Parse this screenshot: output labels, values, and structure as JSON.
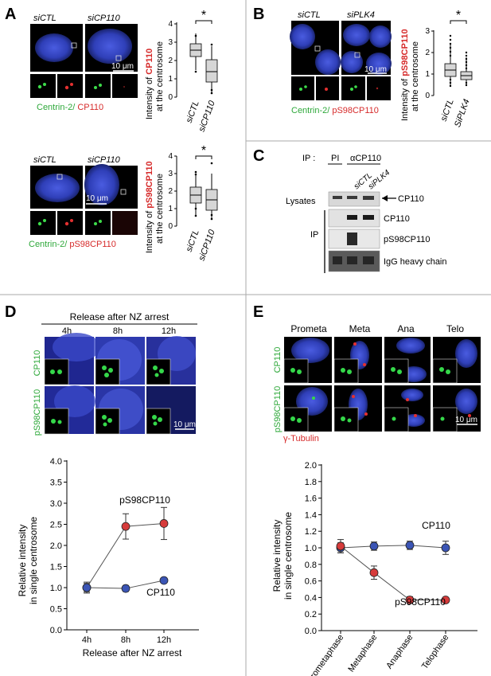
{
  "panels": {
    "A": {
      "letter": "A",
      "top": {
        "cond1": "siCTL",
        "cond2": "siCP110",
        "scalebar": "10 μm",
        "caption_green": "Centrin-2/",
        "caption_red": " CP110",
        "ylabel_pre": "Intensity of ",
        "ylabel_red": "CP110",
        "ylabel_line2": "at the centrosome",
        "sig": "*",
        "xticks": [
          "siCTL",
          "siCP110"
        ],
        "yticks": [
          "0",
          "1",
          "2",
          "3",
          "4"
        ]
      },
      "bottom": {
        "cond1": "siCTL",
        "cond2": "siCP110",
        "scalebar": "10 μm",
        "caption_green": "Centrin-2/",
        "caption_red": " pS98CP110",
        "ylabel_pre": "Intensity of ",
        "ylabel_red": "pS98CP110",
        "ylabel_line2": "at the centrosome",
        "sig": "*",
        "xticks": [
          "siCTL",
          "siCP110"
        ],
        "yticks": [
          "0",
          "1",
          "2",
          "3",
          "4"
        ]
      }
    },
    "B": {
      "letter": "B",
      "cond1": "siCTL",
      "cond2": "siPLK4",
      "scalebar": "10 μm",
      "caption_green": "Centrin-2/",
      "caption_red": " pS98CP110",
      "ylabel_pre": "Intensity of ",
      "ylabel_red": "pS98CP110",
      "ylabel_line2": "at the centrosome",
      "sig": "*",
      "xticks": [
        "siCTL",
        "SiPLK4"
      ],
      "yticks": [
        "0",
        "1",
        "2",
        "3"
      ]
    },
    "C": {
      "letter": "C",
      "ip_label": "IP :",
      "pi": "PI",
      "acp110": "αCP110",
      "lane_sictl": "siCTL",
      "lane_siplk4": "siPLK4",
      "lysates": "Lysates",
      "ip": "IP",
      "band_lys": "CP110",
      "band_cp110": "CP110",
      "band_ps98": "pS98CP110",
      "band_igg": "IgG heavy chain"
    },
    "D": {
      "letter": "D",
      "release_title": "Release after NZ arrest",
      "times": [
        "4h",
        "8h",
        "12h"
      ],
      "row1": "CP110",
      "row2": "pS98CP110",
      "scalebar": "10 μm"
    },
    "E": {
      "letter": "E",
      "phases": [
        "Prometa",
        "Meta",
        "Ana",
        "Telo"
      ],
      "row1": "CP110",
      "row2": "pS98CP110",
      "row2_sub": "γ-Tubulin",
      "scalebar": "10 μm"
    }
  },
  "chart_data": [
    {
      "type": "line",
      "panel": "D",
      "categories": [
        "4h",
        "8h",
        "12h"
      ],
      "xlabel": "Release after NZ arrest",
      "ylabel": "Relative intensity in single centrosome",
      "ylim": [
        0,
        4
      ],
      "yticks": [
        "0.0",
        "0.5",
        "1.0",
        "1.5",
        "2.0",
        "2.5",
        "3.0",
        "3.5",
        "4.0"
      ],
      "series": [
        {
          "name": "pS98CP110",
          "values": [
            1.0,
            2.45,
            2.52
          ],
          "errors": [
            0.13,
            0.3,
            0.38
          ],
          "color": "#d63b3b"
        },
        {
          "name": "CP110",
          "values": [
            1.0,
            0.98,
            1.17
          ],
          "errors": [
            0.1,
            0.07,
            0.04
          ],
          "color": "#3b55b5"
        }
      ]
    },
    {
      "type": "line",
      "panel": "E",
      "categories": [
        "Prometaphase",
        "Metaphase",
        "Anaphase",
        "Telophase"
      ],
      "ylabel": "Relative intensity in single centrosome",
      "ylim": [
        0,
        2
      ],
      "yticks": [
        "0.0",
        "0.2",
        "0.4",
        "0.6",
        "0.8",
        "1.0",
        "1.2",
        "1.4",
        "1.6",
        "1.8",
        "2.0"
      ],
      "series": [
        {
          "name": "CP110",
          "values": [
            1.0,
            1.02,
            1.03,
            1.0
          ],
          "errors": [
            0.06,
            0.05,
            0.05,
            0.08
          ],
          "color": "#3b55b5"
        },
        {
          "name": "pS98CP110",
          "values": [
            1.02,
            0.7,
            0.37,
            0.37
          ],
          "errors": [
            0.08,
            0.08,
            0.04,
            0.03
          ],
          "color": "#d63b3b"
        }
      ]
    }
  ]
}
